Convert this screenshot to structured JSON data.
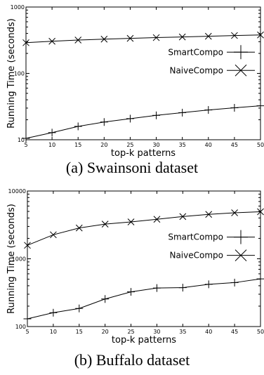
{
  "chart_data": [
    {
      "type": "line",
      "caption": "(a) Swainsoni dataset",
      "xlabel": "top-k patterns",
      "ylabel": "Running Time (seconds)",
      "yscale": "log",
      "ylim": [
        10,
        1000
      ],
      "xlim": [
        5,
        50
      ],
      "x": [
        5,
        10,
        15,
        20,
        25,
        30,
        35,
        40,
        45,
        50
      ],
      "xticks": [
        "5",
        "10",
        "15",
        "20",
        "25",
        "30",
        "35",
        "40",
        "45",
        "50"
      ],
      "yticks": [
        "10",
        "100",
        "1000"
      ],
      "yticks_values": [
        10,
        100,
        1000
      ],
      "legend_position": "right",
      "grid": false,
      "series": [
        {
          "name": "SmartCompo",
          "marker": "plus",
          "values": [
            10.5,
            12.8,
            15.9,
            18.5,
            20.8,
            23.3,
            25.6,
            28.1,
            30.3,
            32.5
          ]
        },
        {
          "name": "NaiveCompo",
          "marker": "x",
          "values": [
            290,
            305,
            318,
            328,
            337,
            346,
            354,
            363,
            372,
            380
          ]
        }
      ]
    },
    {
      "type": "line",
      "caption": "(b) Buffalo dataset",
      "xlabel": "top-k patterns",
      "ylabel": "Running Time (seconds)",
      "yscale": "log",
      "ylim": [
        100,
        10000
      ],
      "xlim": [
        5,
        50
      ],
      "x": [
        5,
        10,
        15,
        20,
        25,
        30,
        35,
        40,
        45,
        50
      ],
      "xticks": [
        "5",
        "10",
        "15",
        "20",
        "25",
        "30",
        "35",
        "40",
        "45",
        "50"
      ],
      "yticks": [
        "100",
        "1000",
        "10000"
      ],
      "yticks_values": [
        100,
        1000,
        10000
      ],
      "legend_position": "right",
      "grid": false,
      "series": [
        {
          "name": "SmartCompo",
          "marker": "plus",
          "values": [
            130,
            160,
            185,
            255,
            325,
            370,
            375,
            420,
            445,
            505
          ]
        },
        {
          "name": "NaiveCompo",
          "marker": "x",
          "values": [
            1580,
            2260,
            2850,
            3250,
            3500,
            3830,
            4200,
            4520,
            4770,
            4950
          ]
        }
      ]
    }
  ]
}
